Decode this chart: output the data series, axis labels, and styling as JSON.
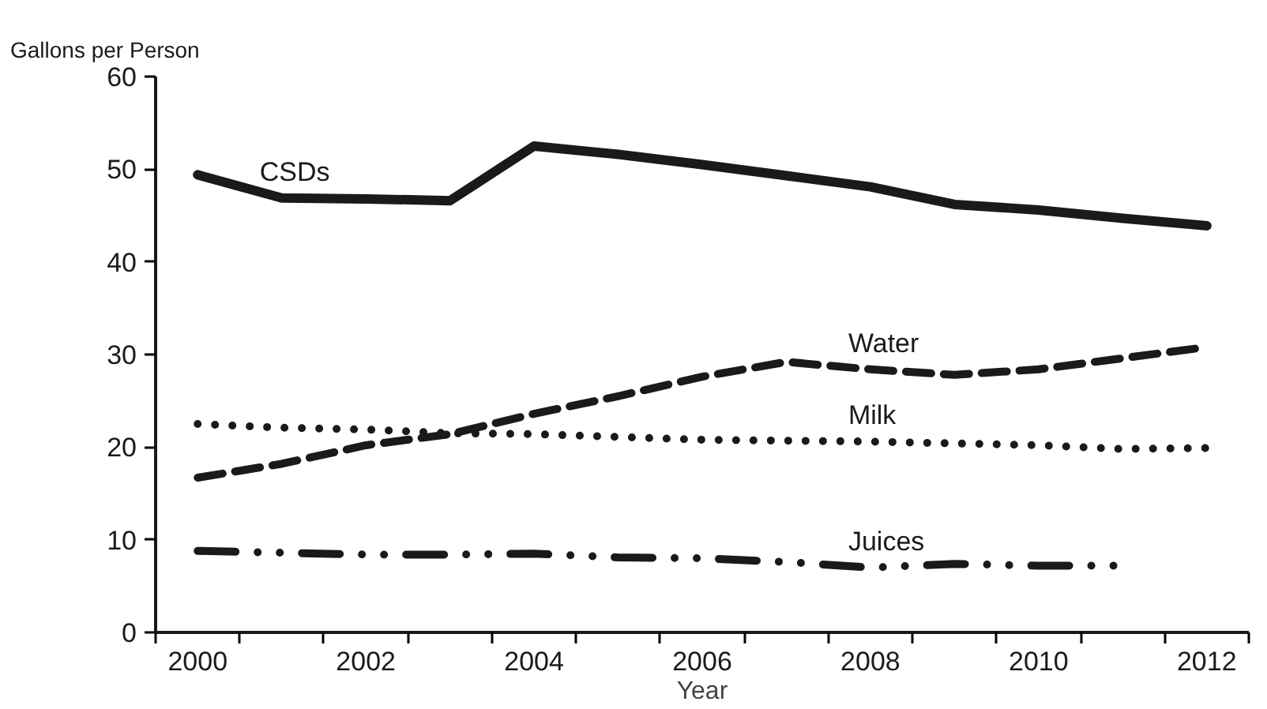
{
  "chart_data": {
    "type": "line",
    "ylabel": "Gallons per Person",
    "xlabel": "Year",
    "x": [
      2000,
      2001,
      2002,
      2003,
      2004,
      2005,
      2006,
      2007,
      2008,
      2009,
      2010,
      2011,
      2012
    ],
    "series": [
      {
        "name": "CSDs",
        "color": "#1a1a1a",
        "line_style": "solid",
        "values": [
          49.4,
          46.9,
          46.8,
          46.6,
          52.5,
          51.6,
          50.5,
          49.3,
          48.1,
          46.2,
          45.6,
          44.7,
          43.9
        ]
      },
      {
        "name": "Water",
        "color": "#1a1a1a",
        "line_style": "dashed",
        "values": [
          16.7,
          18.2,
          20.2,
          21.4,
          23.6,
          25.5,
          27.6,
          29.2,
          28.4,
          27.8,
          28.4,
          29.6,
          30.8
        ]
      },
      {
        "name": "Milk",
        "color": "#1a1a1a",
        "line_style": "dotted",
        "values": [
          22.5,
          22.1,
          21.9,
          21.5,
          21.4,
          21.1,
          20.8,
          20.7,
          20.6,
          20.4,
          20.2,
          19.8,
          19.9
        ]
      },
      {
        "name": "Juices",
        "color": "#1a1a1a",
        "line_style": "dashdot",
        "values": [
          8.8,
          8.6,
          8.4,
          8.4,
          8.5,
          8.1,
          8.0,
          7.6,
          7.0,
          7.4,
          7.2,
          7.2,
          null
        ]
      }
    ],
    "xlim": [
      1999.5,
      2012.5
    ],
    "xticks": [
      {
        "value": 1999.5,
        "label": null
      },
      2000,
      {
        "value": 2000.5,
        "label": null
      },
      {
        "value": 2001.5,
        "label": null
      },
      2002,
      {
        "value": 2002.5,
        "label": null
      },
      {
        "value": 2003.5,
        "label": null
      },
      2004,
      {
        "value": 2004.5,
        "label": null
      },
      {
        "value": 2005.5,
        "label": null
      },
      2006,
      {
        "value": 2006.5,
        "label": null
      },
      {
        "value": 2007.5,
        "label": null
      },
      2008,
      {
        "value": 2008.5,
        "label": null
      },
      {
        "value": 2009.5,
        "label": null
      },
      2010,
      {
        "value": 2010.5,
        "label": null
      },
      {
        "value": 2011.5,
        "label": null
      },
      2012,
      {
        "value": 2012.5,
        "label": null
      }
    ],
    "ylim": [
      0,
      60
    ],
    "yticks": [
      0,
      10,
      20,
      30,
      40,
      50,
      60
    ],
    "grid": false,
    "marker": "none"
  }
}
